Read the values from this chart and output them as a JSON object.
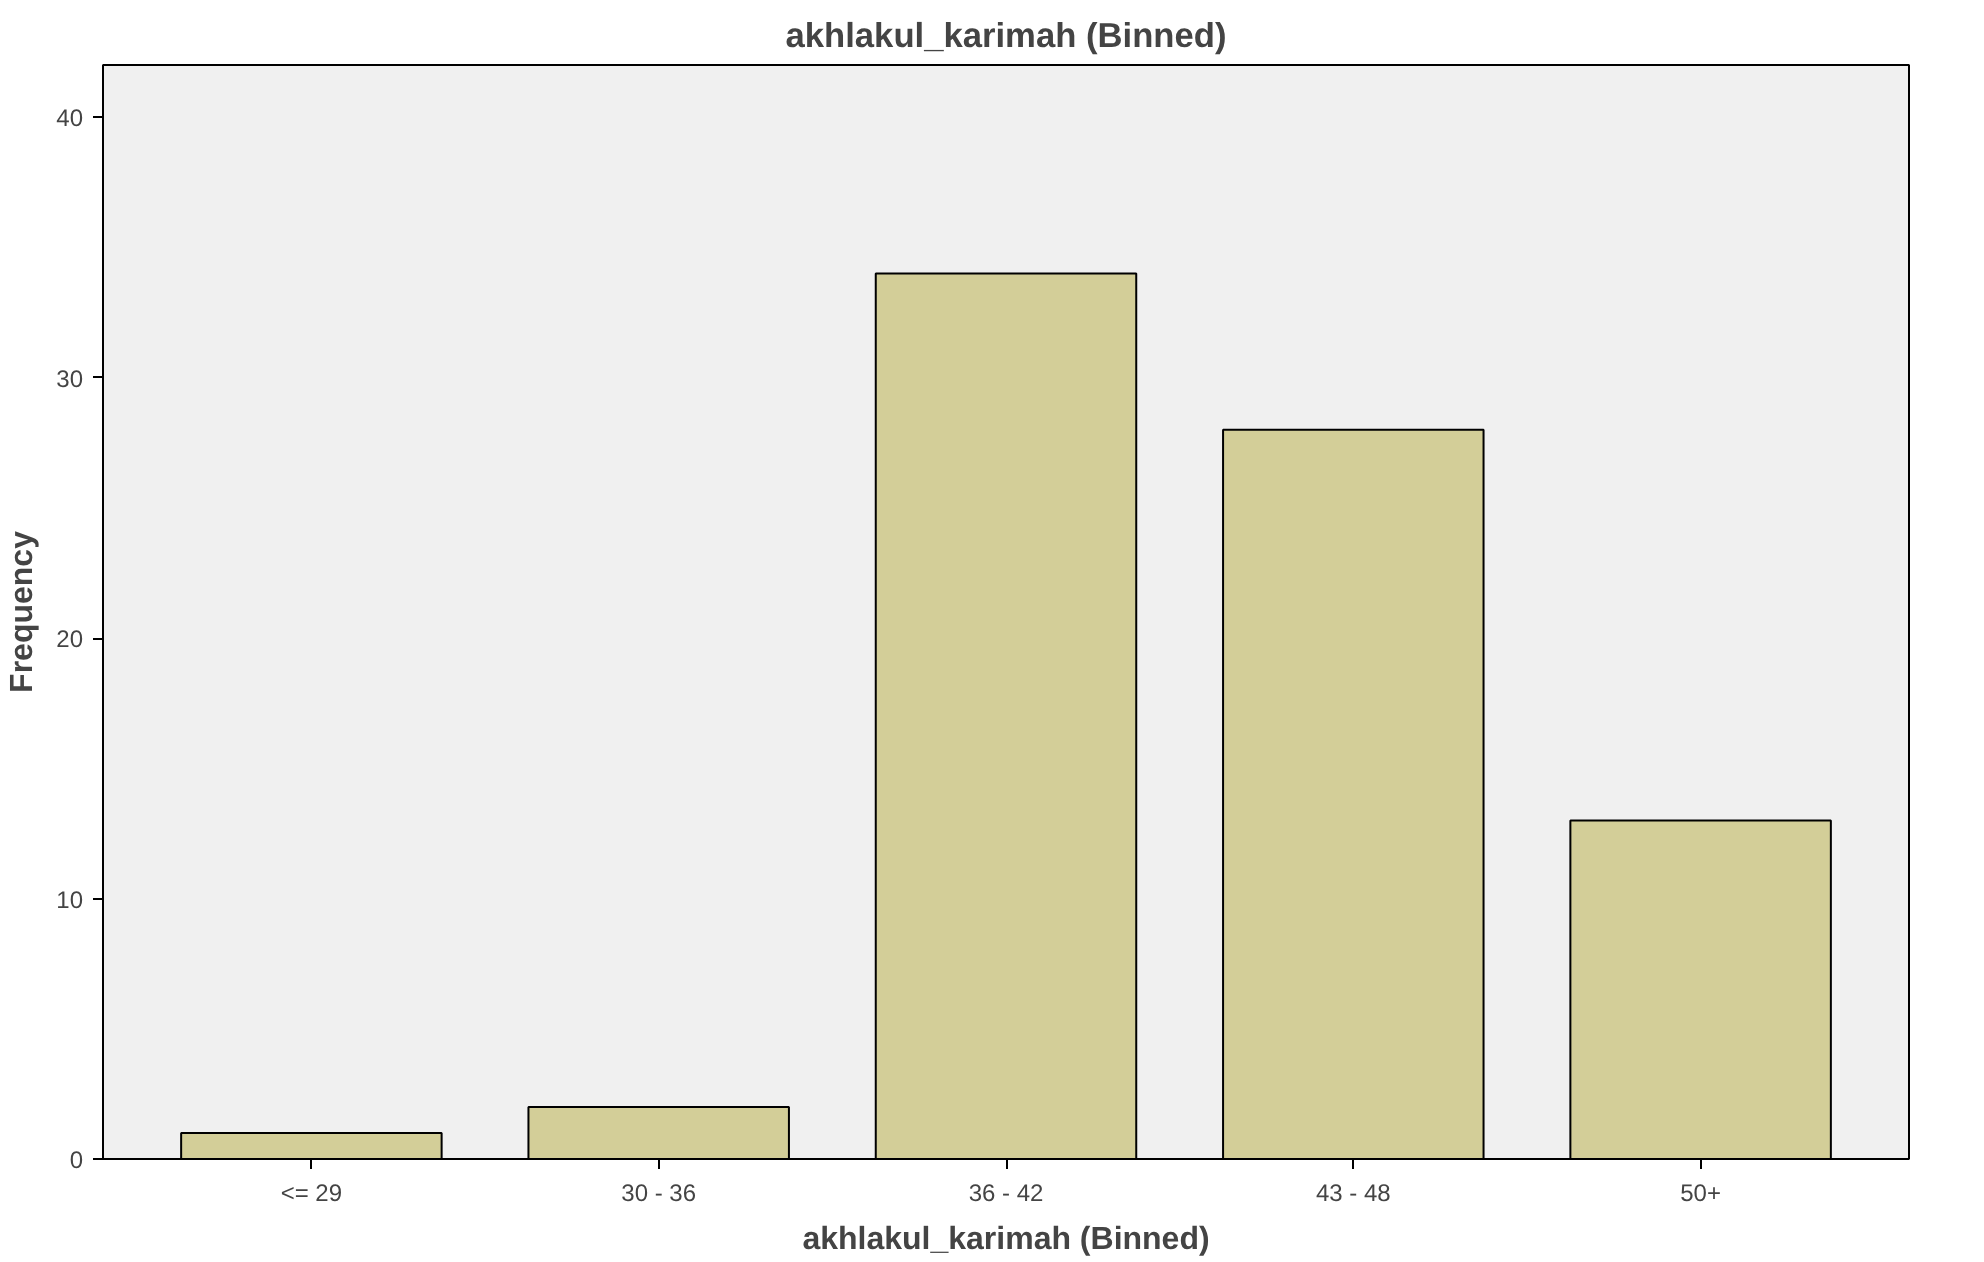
{
  "chart_data": {
    "type": "bar",
    "title": "akhlakul_karimah (Binned)",
    "xlabel": "akhlakul_karimah (Binned)",
    "ylabel": "Frequency",
    "categories": [
      "<= 29",
      "30 - 36",
      "36 - 42",
      "43 - 48",
      "50+"
    ],
    "values": [
      1,
      2,
      34,
      28,
      13
    ],
    "color": "#d3ce98",
    "ylim": [
      0,
      42
    ],
    "yticks": [
      0,
      10,
      20,
      30,
      40
    ],
    "grid": false
  }
}
